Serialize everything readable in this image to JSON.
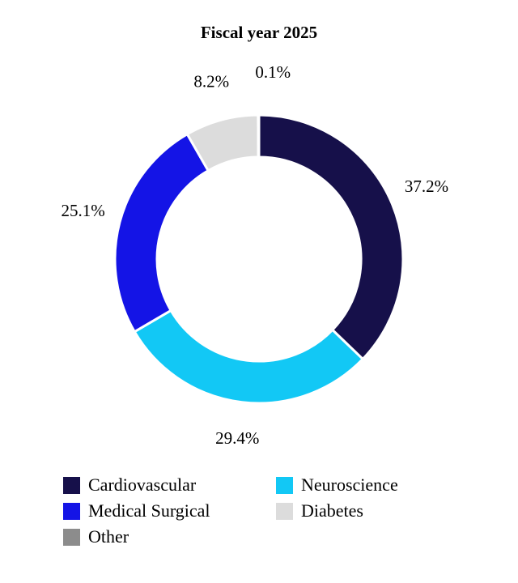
{
  "chart_data": {
    "type": "pie",
    "title": "Fiscal year 2025",
    "categories": [
      "Cardiovascular",
      "Neuroscience",
      "Medical Surgical",
      "Diabetes",
      "Other"
    ],
    "values": [
      37.2,
      29.4,
      25.1,
      8.2,
      0.1
    ],
    "value_labels": [
      "37.2%",
      "29.4%",
      "25.1%",
      "8.2%",
      "0.1%"
    ],
    "colors": [
      "#16104a",
      "#12c8f5",
      "#1414e6",
      "#dcdcdc",
      "#8c8c8c"
    ],
    "donut": true,
    "start_angle_deg": 0,
    "direction": "clockwise",
    "legend_placement": "bottom"
  },
  "legend": {
    "items": [
      {
        "label": "Cardiovascular",
        "color": "#16104a"
      },
      {
        "label": "Neuroscience",
        "color": "#12c8f5"
      },
      {
        "label": "Medical Surgical",
        "color": "#1414e6"
      },
      {
        "label": "Diabetes",
        "color": "#dcdcdc"
      },
      {
        "label": "Other",
        "color": "#8c8c8c"
      }
    ]
  }
}
